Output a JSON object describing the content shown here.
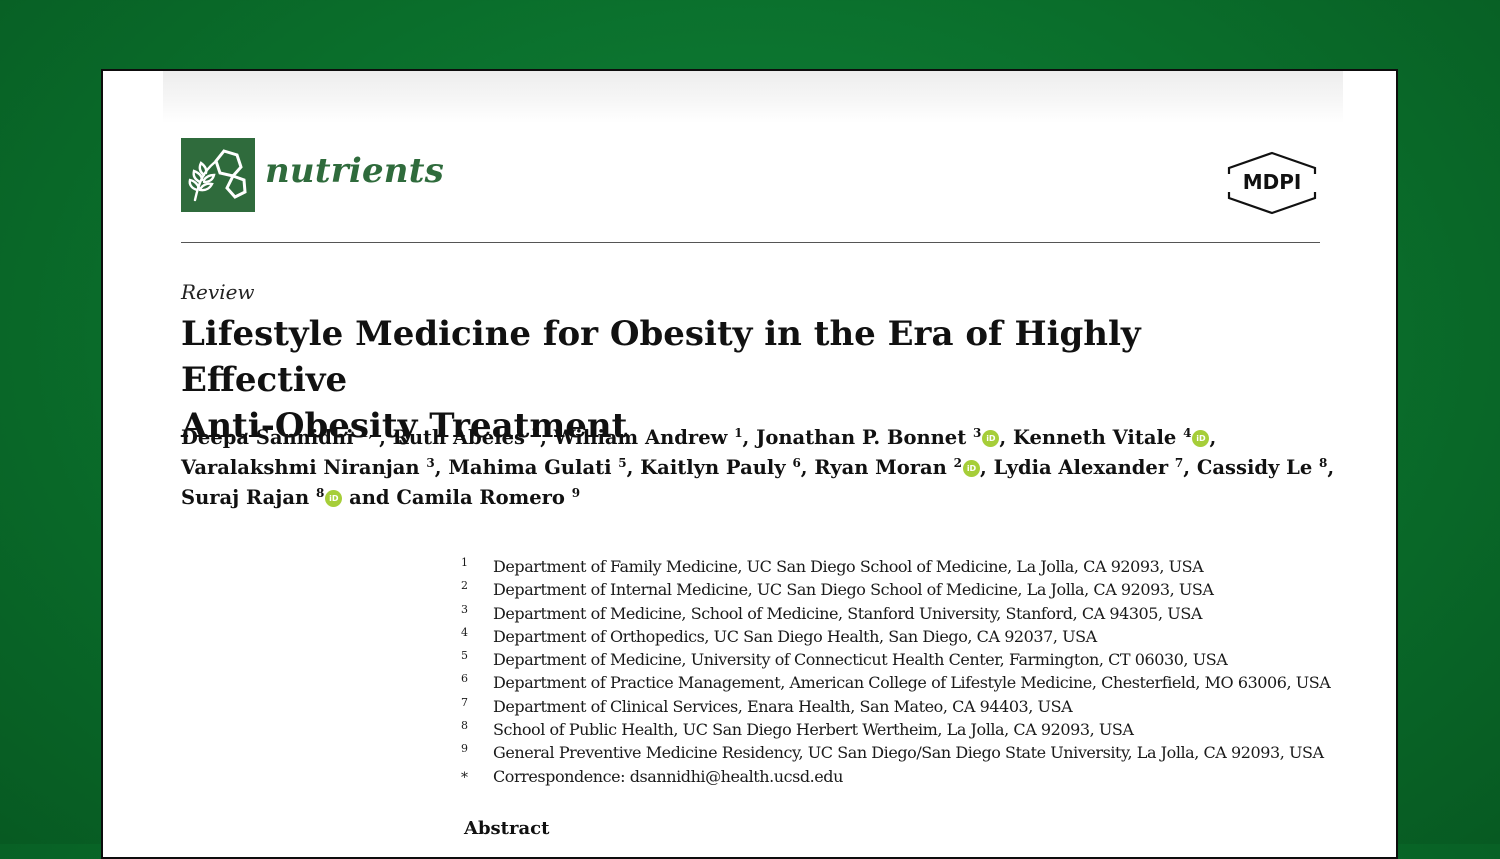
{
  "journal": {
    "name": "nutrients",
    "logo_icon": "nutrients-journal-logo-icon",
    "color": "#2f6b3c"
  },
  "publisher": {
    "name": "MDPI"
  },
  "article": {
    "type": "Review",
    "title_line1": "Lifestyle Medicine for Obesity in the Era of Highly Effective",
    "title_line2": "Anti-Obesity Treatment"
  },
  "authors": [
    {
      "name": "Deepa Sannidhi",
      "sup": "1,*",
      "orcid": false,
      "sep": ", "
    },
    {
      "name": "Ruth Abeles",
      "sup": "2",
      "orcid": false,
      "sep": ", "
    },
    {
      "name": "William Andrew",
      "sup": "1",
      "orcid": false,
      "sep": ", "
    },
    {
      "name": "Jonathan P. Bonnet",
      "sup": "3",
      "orcid": true,
      "sep": ", "
    },
    {
      "name": "Kenneth Vitale",
      "sup": "4",
      "orcid": true,
      "sep": ","
    },
    {
      "name": "Varalakshmi Niranjan",
      "sup": "3",
      "orcid": false,
      "sep": ", "
    },
    {
      "name": "Mahima Gulati",
      "sup": "5",
      "orcid": false,
      "sep": ", "
    },
    {
      "name": "Kaitlyn Pauly",
      "sup": "6",
      "orcid": false,
      "sep": ", "
    },
    {
      "name": "Ryan Moran",
      "sup": "2",
      "orcid": true,
      "sep": ", "
    },
    {
      "name": "Lydia Alexander",
      "sup": "7",
      "orcid": false,
      "sep": ", "
    },
    {
      "name": "Cassidy Le",
      "sup": "8",
      "orcid": false,
      "sep": ","
    },
    {
      "name": "Suraj Rajan",
      "sup": "8",
      "orcid": true,
      "sep": " and "
    },
    {
      "name": "Camila Romero",
      "sup": "9",
      "orcid": false,
      "sep": ""
    }
  ],
  "orcid_label": "iD",
  "orcid_color": "#a6ce39",
  "affiliations": [
    {
      "num": "1",
      "text": "Department of Family Medicine, UC San Diego School of Medicine, La Jolla, CA 92093, USA"
    },
    {
      "num": "2",
      "text": "Department of Internal Medicine, UC San Diego School of Medicine, La Jolla, CA 92093, USA"
    },
    {
      "num": "3",
      "text": "Department of Medicine, School of Medicine, Stanford University, Stanford, CA 94305, USA"
    },
    {
      "num": "4",
      "text": "Department of Orthopedics, UC San Diego Health, San Diego, CA 92037, USA"
    },
    {
      "num": "5",
      "text": "Department of Medicine, University of Connecticut Health Center, Farmington, CT 06030, USA"
    },
    {
      "num": "6",
      "text": "Department of Practice Management, American College of Lifestyle Medicine, Chesterfield, MO 63006, USA"
    },
    {
      "num": "7",
      "text": "Department of Clinical Services, Enara Health, San Mateo, CA 94403, USA"
    },
    {
      "num": "8",
      "text": "School of Public Health, UC San Diego Herbert Wertheim, La Jolla, CA 92093, USA"
    },
    {
      "num": "9",
      "text": "General Preventive Medicine Residency, UC San Diego/San Diego State University, La Jolla, CA 92093, USA"
    },
    {
      "num": "*",
      "text": "Correspondence: dsannidhi@health.ucsd.edu"
    }
  ],
  "abstract_heading": "Abstract",
  "background_color": "#0b742e"
}
